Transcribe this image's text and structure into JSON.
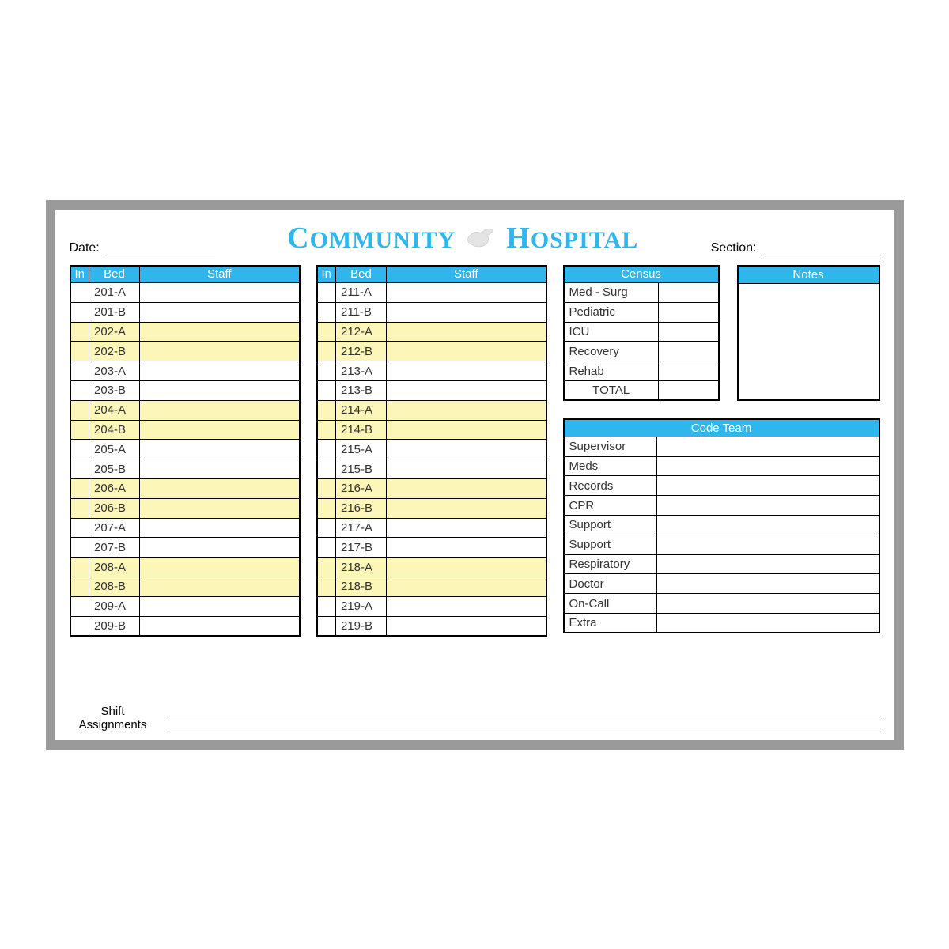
{
  "colors": {
    "frame": "#9a9a9a",
    "header_blue": "#2eb6ed",
    "row_shade": "#fdf6b9",
    "border": "#000000",
    "background": "#ffffff"
  },
  "header": {
    "date_label": "Date:",
    "section_label": "Section:",
    "title_word1": "COMMUNITY",
    "title_word2": "HOSPITAL",
    "logo_icon": "dove-icon"
  },
  "bed_table": {
    "headers": {
      "in": "In",
      "bed": "Bed",
      "staff": "Staff"
    },
    "column_widths": {
      "in": 24,
      "bed": 64
    },
    "row_height": 24.8,
    "left": [
      {
        "bed": "201-A",
        "shade": false
      },
      {
        "bed": "201-B",
        "shade": false
      },
      {
        "bed": "202-A",
        "shade": true
      },
      {
        "bed": "202-B",
        "shade": true
      },
      {
        "bed": "203-A",
        "shade": false
      },
      {
        "bed": "203-B",
        "shade": false
      },
      {
        "bed": "204-A",
        "shade": true
      },
      {
        "bed": "204-B",
        "shade": true
      },
      {
        "bed": "205-A",
        "shade": false
      },
      {
        "bed": "205-B",
        "shade": false
      },
      {
        "bed": "206-A",
        "shade": true
      },
      {
        "bed": "206-B",
        "shade": true
      },
      {
        "bed": "207-A",
        "shade": false
      },
      {
        "bed": "207-B",
        "shade": false
      },
      {
        "bed": "208-A",
        "shade": true
      },
      {
        "bed": "208-B",
        "shade": true
      },
      {
        "bed": "209-A",
        "shade": false
      },
      {
        "bed": "209-B",
        "shade": false
      }
    ],
    "right": [
      {
        "bed": "211-A",
        "shade": false
      },
      {
        "bed": "211-B",
        "shade": false
      },
      {
        "bed": "212-A",
        "shade": true
      },
      {
        "bed": "212-B",
        "shade": true
      },
      {
        "bed": "213-A",
        "shade": false
      },
      {
        "bed": "213-B",
        "shade": false
      },
      {
        "bed": "214-A",
        "shade": true
      },
      {
        "bed": "214-B",
        "shade": true
      },
      {
        "bed": "215-A",
        "shade": false
      },
      {
        "bed": "215-B",
        "shade": false
      },
      {
        "bed": "216-A",
        "shade": true
      },
      {
        "bed": "216-B",
        "shade": true
      },
      {
        "bed": "217-A",
        "shade": false
      },
      {
        "bed": "217-B",
        "shade": false
      },
      {
        "bed": "218-A",
        "shade": true
      },
      {
        "bed": "218-B",
        "shade": true
      },
      {
        "bed": "219-A",
        "shade": false
      },
      {
        "bed": "219-B",
        "shade": false
      }
    ]
  },
  "census": {
    "title": "Census",
    "rows": [
      "Med - Surg",
      "Pediatric",
      "ICU",
      "Recovery",
      "Rehab"
    ],
    "total_label": "TOTAL"
  },
  "notes": {
    "title": "Notes"
  },
  "code_team": {
    "title": "Code Team",
    "roles": [
      "Supervisor",
      "Meds",
      "Records",
      "CPR",
      "Support",
      "Support",
      "Respiratory",
      "Doctor",
      "On-Call",
      "Extra"
    ]
  },
  "footer": {
    "label_line1": "Shift",
    "label_line2": "Assignments"
  }
}
